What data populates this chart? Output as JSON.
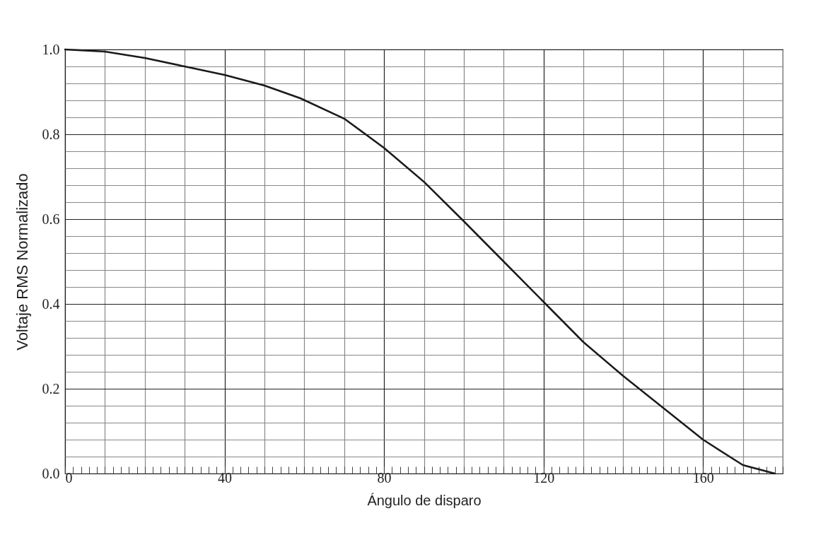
{
  "chart_data": {
    "type": "line",
    "xlabel": "Ángulo de disparo",
    "ylabel": "Voltaje RMS Normalizado",
    "x": [
      0,
      10,
      20,
      30,
      40,
      50,
      59,
      70,
      80,
      90,
      100,
      110,
      120,
      130,
      140,
      150,
      160,
      170,
      178
    ],
    "series": [
      {
        "color": "#1a1a1a",
        "values": [
          1.0,
          0.995,
          0.98,
          0.96,
          0.94,
          0.915,
          0.885,
          0.837,
          0.768,
          0.688,
          0.595,
          0.5,
          0.405,
          0.31,
          0.23,
          0.155,
          0.08,
          0.02,
          0.0
        ]
      }
    ],
    "xlim": [
      0,
      180
    ],
    "xticks": [
      0,
      40,
      80,
      120,
      160
    ],
    "ylim": [
      0,
      1
    ],
    "yticks": [
      {
        "value": 0,
        "label": "0.0"
      },
      {
        "value": 0.2,
        "label": "0.2"
      },
      {
        "value": 0.4,
        "label": "0.4"
      },
      {
        "value": 0.6,
        "label": "0.6"
      },
      {
        "value": 0.8,
        "label": "0.8"
      },
      {
        "value": 1,
        "label": "1.0"
      }
    ],
    "grid": true,
    "marker": "none",
    "line_style": "solid"
  }
}
